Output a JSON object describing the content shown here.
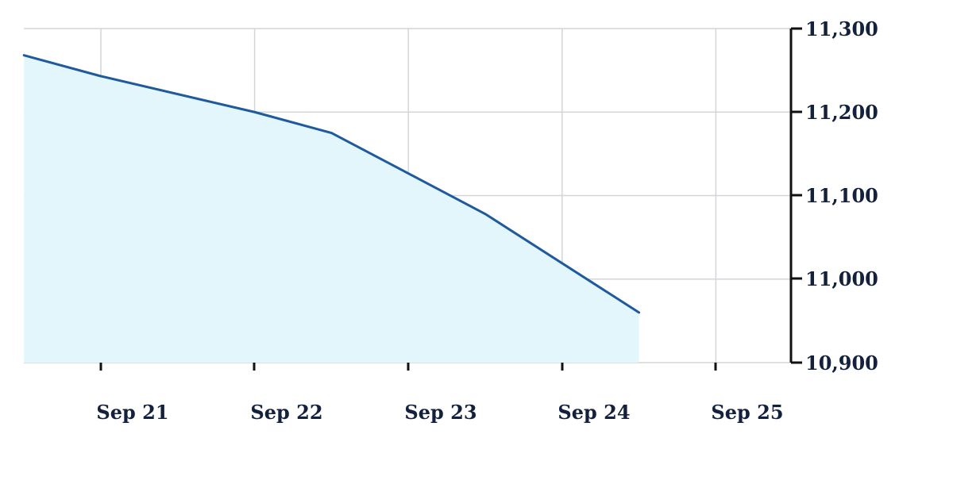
{
  "chart_data": {
    "type": "area",
    "x_tick_labels": [
      "Sep 21",
      "Sep 22",
      "Sep 23",
      "Sep 24",
      "Sep 25"
    ],
    "y_tick_labels": [
      "11,300",
      "11,200",
      "11,100",
      "11,000",
      "10,900"
    ],
    "ylim": [
      10900,
      11300
    ],
    "xlim": [
      "Sep 20.5",
      "Sep 25.4"
    ],
    "y_axis_position": "right",
    "grid": true,
    "series": [
      {
        "x": [
          20.5,
          21.0,
          22.0,
          22.5,
          23.5,
          24.5
        ],
        "x_day_labels": [
          "Sep 20 (half-day)",
          "Sep 21",
          "Sep 22",
          "Sep 22 (half-day)",
          "Sep 23 (half-day)",
          "Sep 24 (half-day)"
        ],
        "values": [
          11268,
          11243,
          11200,
          11175,
          11078,
          10960
        ],
        "color": "#1f5a9e",
        "fill": "#e2f6fb"
      }
    ]
  }
}
